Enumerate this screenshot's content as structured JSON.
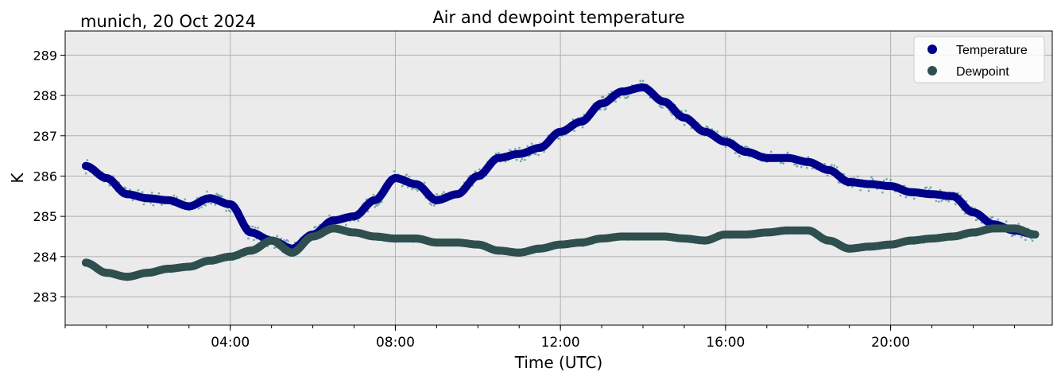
{
  "chart_data": {
    "type": "line",
    "title": "Air and dewpoint temperature",
    "subtitle": "munich, 20 Oct 2024",
    "xlabel": "Time (UTC)",
    "ylabel": "K",
    "x_ticks": [
      "04:00",
      "08:00",
      "12:00",
      "16:00",
      "20:00"
    ],
    "y_ticks": [
      "283",
      "284",
      "285",
      "286",
      "287",
      "288",
      "289"
    ],
    "xlim": [
      "00:00",
      "23:55"
    ],
    "ylim": [
      282.3,
      289.6
    ],
    "grid": true,
    "legend": "top-right",
    "background": "#ebebeb",
    "x": [
      "00:30",
      "01:00",
      "01:30",
      "02:00",
      "02:30",
      "03:00",
      "03:30",
      "04:00",
      "04:30",
      "05:00",
      "05:30",
      "06:00",
      "06:30",
      "07:00",
      "07:30",
      "08:00",
      "08:30",
      "09:00",
      "09:30",
      "10:00",
      "10:30",
      "11:00",
      "11:30",
      "12:00",
      "12:30",
      "13:00",
      "13:30",
      "14:00",
      "14:30",
      "15:00",
      "15:30",
      "16:00",
      "16:30",
      "17:00",
      "17:30",
      "18:00",
      "18:30",
      "19:00",
      "19:30",
      "20:00",
      "20:30",
      "21:00",
      "21:30",
      "22:00",
      "22:30",
      "23:00",
      "23:30"
    ],
    "series": [
      {
        "name": "Temperature",
        "color": "#00008b",
        "raw_color": "#6fa8a8",
        "values": [
          286.25,
          285.95,
          285.55,
          285.45,
          285.4,
          285.25,
          285.45,
          285.3,
          284.6,
          284.4,
          284.2,
          284.55,
          284.9,
          285.0,
          285.4,
          285.95,
          285.8,
          285.4,
          285.55,
          286.0,
          286.45,
          286.55,
          286.7,
          287.1,
          287.35,
          287.8,
          288.1,
          288.2,
          287.85,
          287.45,
          287.1,
          286.85,
          286.6,
          286.45,
          286.45,
          286.35,
          286.15,
          285.85,
          285.8,
          285.75,
          285.6,
          285.55,
          285.5,
          285.1,
          284.8,
          284.65,
          284.55
        ]
      },
      {
        "name": "Dewpoint",
        "color": "#2f4f4f",
        "raw_color": "#1e9be6",
        "values": [
          283.85,
          283.6,
          283.5,
          283.6,
          283.7,
          283.75,
          283.9,
          284.0,
          284.15,
          284.4,
          284.1,
          284.5,
          284.7,
          284.6,
          284.5,
          284.45,
          284.45,
          284.35,
          284.35,
          284.3,
          284.15,
          284.1,
          284.2,
          284.3,
          284.35,
          284.45,
          284.5,
          284.5,
          284.5,
          284.45,
          284.4,
          284.55,
          284.55,
          284.6,
          284.65,
          284.65,
          284.4,
          284.2,
          284.25,
          284.3,
          284.4,
          284.45,
          284.5,
          284.6,
          284.7,
          284.7,
          284.55
        ]
      }
    ]
  }
}
